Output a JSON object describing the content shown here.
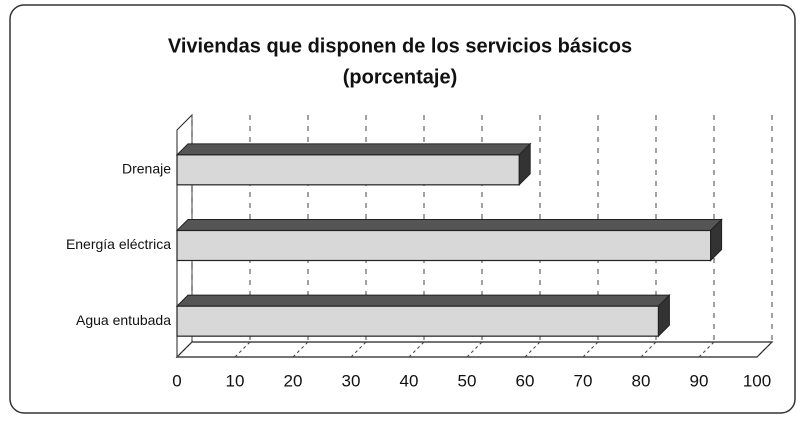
{
  "chart_data": {
    "type": "bar3d_horizontal",
    "title": "Viviendas que disponen de los servicios básicos",
    "subtitle": "(porcentaje)",
    "categories": [
      "Drenaje",
      "Energía eléctrica",
      "Agua entubada"
    ],
    "values": [
      59,
      92,
      83
    ],
    "color": "#d8d8d8",
    "xlim": [
      0,
      100
    ],
    "xticks": [
      0,
      10,
      20,
      30,
      40,
      50,
      60,
      70,
      80,
      90,
      100
    ],
    "grid": true
  }
}
